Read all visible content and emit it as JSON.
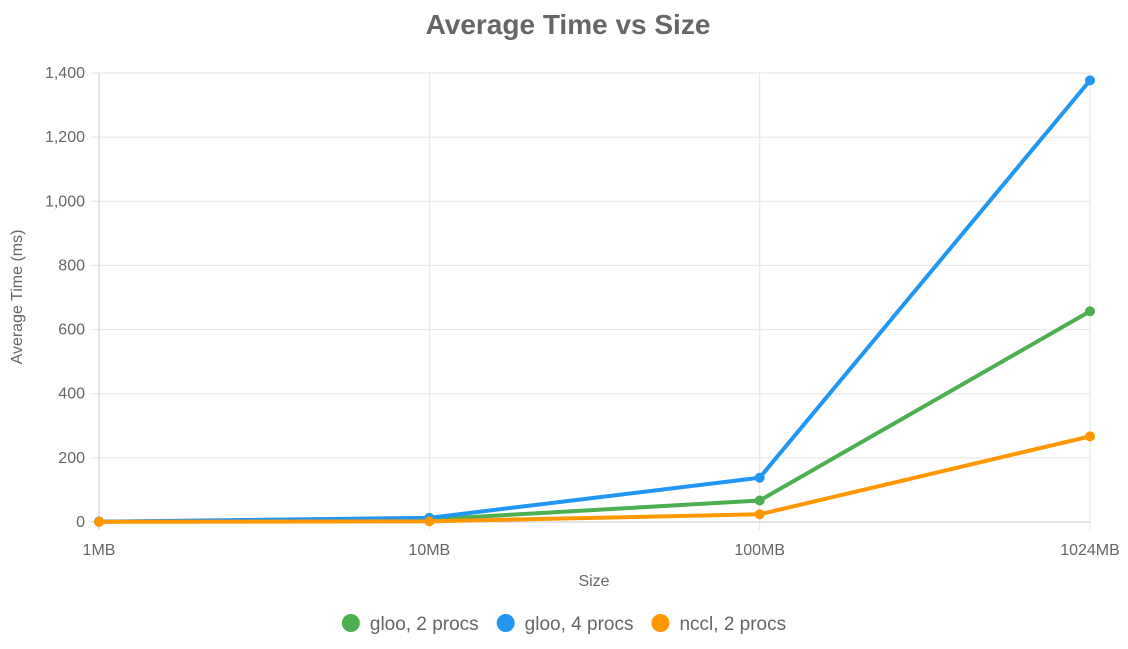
{
  "chart_data": {
    "type": "line",
    "title": "Average Time vs Size",
    "xlabel": "Size",
    "ylabel": "Average Time (ms)",
    "categories": [
      "1MB",
      "10MB",
      "100MB",
      "1024MB"
    ],
    "ylim": [
      0,
      1400
    ],
    "y_ticks": [
      "0",
      "200",
      "400",
      "600",
      "800",
      "1,000",
      "1,200",
      "1,400"
    ],
    "grid": true,
    "legend_position": "bottom",
    "series": [
      {
        "name": "gloo, 2 procs",
        "color": "#4caf50",
        "values": [
          1,
          8,
          67,
          657
        ]
      },
      {
        "name": "gloo, 4 procs",
        "color": "#2196f3",
        "values": [
          1,
          13,
          138,
          1377
        ]
      },
      {
        "name": "nccl, 2 procs",
        "color": "#ff9800",
        "values": [
          0.5,
          2,
          24,
          267
        ]
      }
    ]
  }
}
